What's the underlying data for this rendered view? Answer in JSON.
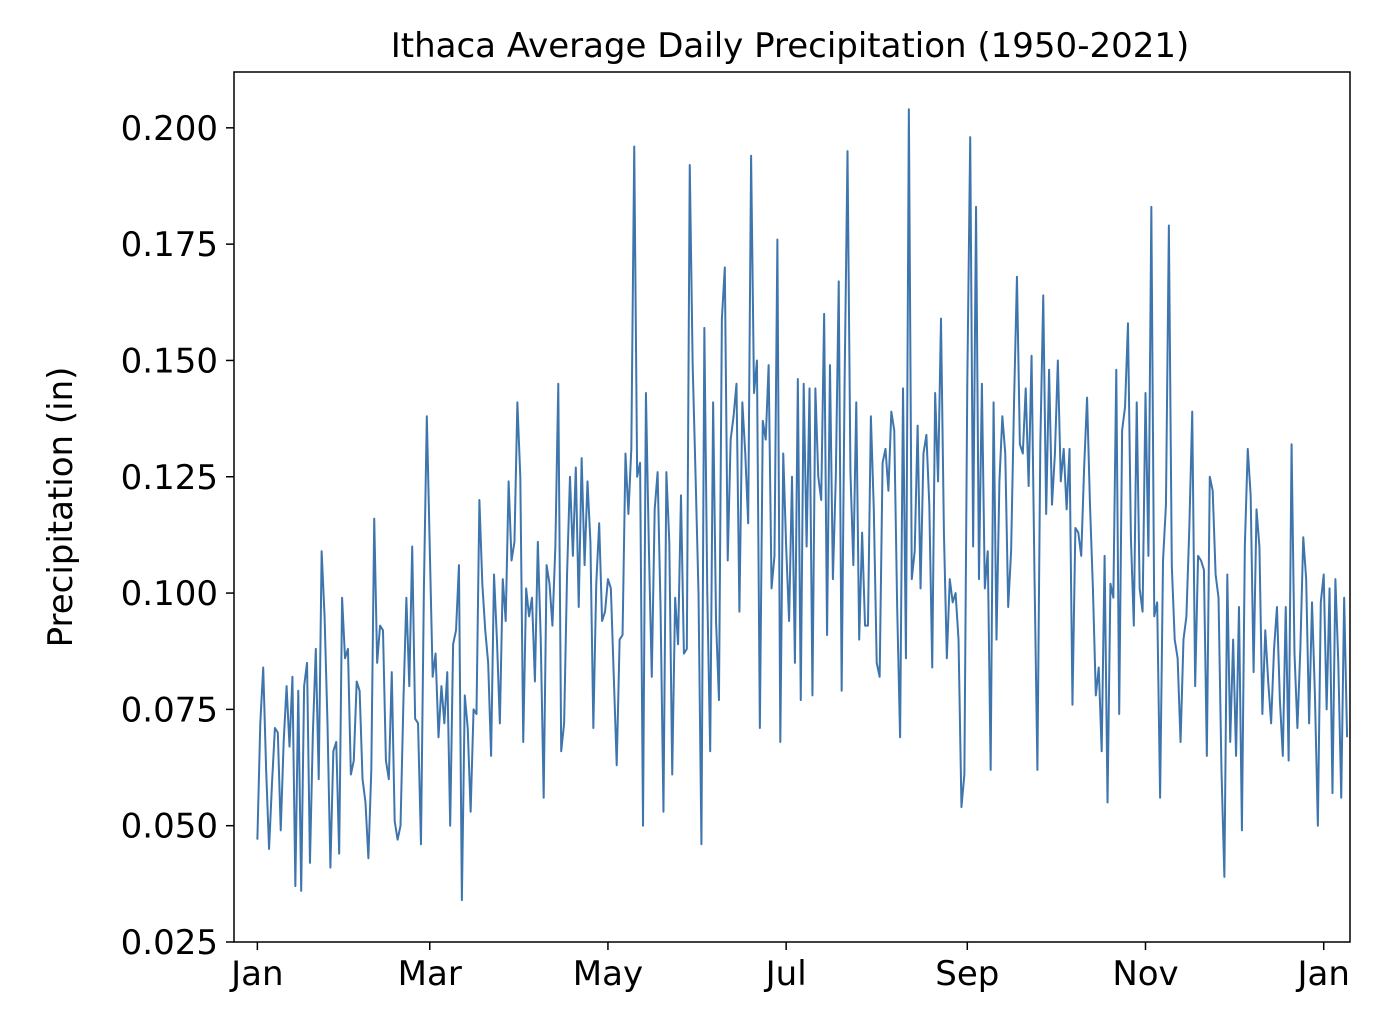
{
  "chart_data": {
    "type": "line",
    "title": "Ithaca Average Daily Precipitation (1950-2021)",
    "xlabel": "",
    "ylabel": "Precipitation (in)",
    "ylim": [
      0.025,
      0.212
    ],
    "xlim": [
      -8,
      374
    ],
    "grid": false,
    "line_color": "#3f75ad",
    "x_ticks": [
      {
        "label": "Jan",
        "day": 0
      },
      {
        "label": "Mar",
        "day": 59
      },
      {
        "label": "May",
        "day": 120
      },
      {
        "label": "Jul",
        "day": 181
      },
      {
        "label": "Sep",
        "day": 243
      },
      {
        "label": "Nov",
        "day": 304
      },
      {
        "label": "Jan",
        "day": 365
      }
    ],
    "y_ticks": [
      {
        "label": "0.025",
        "value": 0.025
      },
      {
        "label": "0.050",
        "value": 0.05
      },
      {
        "label": "0.075",
        "value": 0.075
      },
      {
        "label": "0.100",
        "value": 0.1
      },
      {
        "label": "0.125",
        "value": 0.125
      },
      {
        "label": "0.150",
        "value": 0.15
      },
      {
        "label": "0.175",
        "value": 0.175
      },
      {
        "label": "0.200",
        "value": 0.2
      }
    ],
    "series": [
      {
        "values": [
          0.047,
          0.072,
          0.084,
          0.062,
          0.045,
          0.059,
          0.071,
          0.07,
          0.049,
          0.068,
          0.08,
          0.067,
          0.082,
          0.037,
          0.079,
          0.036,
          0.08,
          0.085,
          0.042,
          0.07,
          0.088,
          0.06,
          0.109,
          0.095,
          0.072,
          0.041,
          0.066,
          0.068,
          0.044,
          0.099,
          0.086,
          0.088,
          0.061,
          0.064,
          0.081,
          0.079,
          0.06,
          0.055,
          0.043,
          0.062,
          0.116,
          0.085,
          0.093,
          0.092,
          0.064,
          0.06,
          0.083,
          0.051,
          0.047,
          0.05,
          0.077,
          0.099,
          0.08,
          0.11,
          0.073,
          0.072,
          0.046,
          0.101,
          0.138,
          0.11,
          0.082,
          0.087,
          0.069,
          0.08,
          0.072,
          0.083,
          0.05,
          0.089,
          0.092,
          0.106,
          0.034,
          0.078,
          0.071,
          0.053,
          0.075,
          0.074,
          0.12,
          0.102,
          0.092,
          0.085,
          0.065,
          0.104,
          0.09,
          0.072,
          0.103,
          0.094,
          0.124,
          0.107,
          0.111,
          0.141,
          0.125,
          0.068,
          0.101,
          0.095,
          0.099,
          0.081,
          0.111,
          0.09,
          0.056,
          0.106,
          0.102,
          0.093,
          0.11,
          0.145,
          0.066,
          0.072,
          0.104,
          0.125,
          0.108,
          0.127,
          0.097,
          0.129,
          0.106,
          0.124,
          0.111,
          0.071,
          0.102,
          0.115,
          0.094,
          0.096,
          0.103,
          0.101,
          0.082,
          0.063,
          0.09,
          0.091,
          0.13,
          0.117,
          0.131,
          0.196,
          0.125,
          0.128,
          0.05,
          0.143,
          0.11,
          0.082,
          0.118,
          0.126,
          0.097,
          0.053,
          0.126,
          0.111,
          0.061,
          0.099,
          0.089,
          0.121,
          0.087,
          0.088,
          0.192,
          0.149,
          0.125,
          0.1,
          0.046,
          0.157,
          0.1,
          0.066,
          0.141,
          0.094,
          0.077,
          0.159,
          0.17,
          0.107,
          0.133,
          0.138,
          0.145,
          0.096,
          0.141,
          0.13,
          0.115,
          0.194,
          0.143,
          0.15,
          0.071,
          0.137,
          0.133,
          0.149,
          0.101,
          0.108,
          0.176,
          0.068,
          0.13,
          0.11,
          0.094,
          0.125,
          0.085,
          0.146,
          0.077,
          0.145,
          0.11,
          0.144,
          0.078,
          0.144,
          0.125,
          0.12,
          0.16,
          0.091,
          0.149,
          0.103,
          0.125,
          0.167,
          0.079,
          0.145,
          0.195,
          0.126,
          0.106,
          0.141,
          0.09,
          0.113,
          0.093,
          0.093,
          0.138,
          0.118,
          0.085,
          0.082,
          0.128,
          0.131,
          0.122,
          0.139,
          0.135,
          0.097,
          0.069,
          0.144,
          0.086,
          0.204,
          0.103,
          0.109,
          0.136,
          0.101,
          0.13,
          0.134,
          0.119,
          0.084,
          0.143,
          0.124,
          0.159,
          0.113,
          0.086,
          0.103,
          0.098,
          0.1,
          0.09,
          0.054,
          0.061,
          0.145,
          0.198,
          0.11,
          0.183,
          0.103,
          0.145,
          0.101,
          0.109,
          0.062,
          0.141,
          0.09,
          0.124,
          0.138,
          0.13,
          0.097,
          0.109,
          0.141,
          0.168,
          0.132,
          0.13,
          0.144,
          0.123,
          0.151,
          0.104,
          0.062,
          0.132,
          0.164,
          0.117,
          0.148,
          0.119,
          0.13,
          0.15,
          0.124,
          0.131,
          0.118,
          0.131,
          0.076,
          0.114,
          0.113,
          0.108,
          0.127,
          0.142,
          0.119,
          0.101,
          0.078,
          0.084,
          0.066,
          0.108,
          0.055,
          0.102,
          0.099,
          0.148,
          0.074,
          0.135,
          0.14,
          0.158,
          0.112,
          0.093,
          0.141,
          0.101,
          0.096,
          0.143,
          0.108,
          0.183,
          0.095,
          0.098,
          0.056,
          0.107,
          0.119,
          0.179,
          0.106,
          0.09,
          0.086,
          0.068,
          0.09,
          0.095,
          0.114,
          0.139,
          0.08,
          0.108,
          0.107,
          0.105,
          0.065,
          0.125,
          0.122,
          0.104,
          0.099,
          0.062,
          0.039,
          0.104,
          0.068,
          0.09,
          0.065,
          0.097,
          0.049,
          0.11,
          0.131,
          0.121,
          0.083,
          0.118,
          0.11,
          0.074,
          0.092,
          0.081,
          0.072,
          0.088,
          0.097,
          0.077,
          0.065,
          0.097,
          0.064,
          0.132,
          0.087,
          0.071,
          0.088,
          0.112,
          0.103,
          0.072,
          0.098,
          0.078,
          0.05,
          0.098,
          0.104,
          0.075,
          0.101,
          0.057,
          0.103,
          0.085,
          0.056,
          0.099,
          0.069
        ]
      }
    ]
  }
}
